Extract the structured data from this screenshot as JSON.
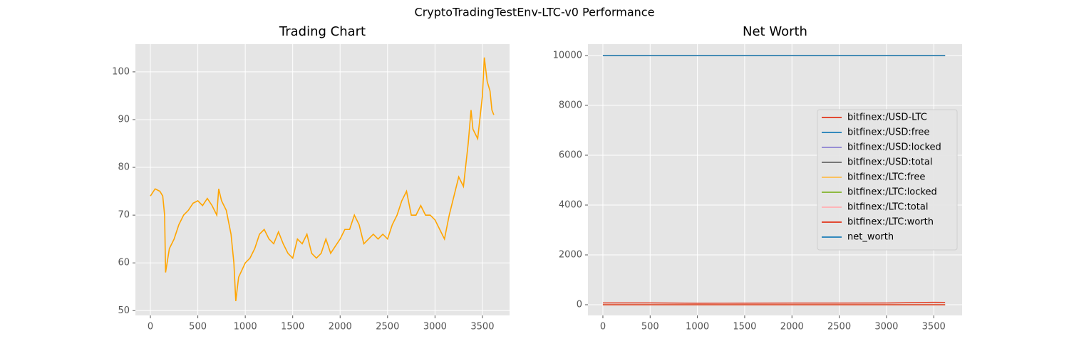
{
  "title": "CryptoTradingTestEnv-LTC-v0 Performance",
  "chart_data": [
    {
      "type": "line",
      "title": "Trading Chart",
      "color": "#FFA500",
      "grid": true,
      "x": [
        0,
        50,
        100,
        130,
        150,
        160,
        200,
        250,
        300,
        350,
        400,
        450,
        500,
        550,
        600,
        650,
        700,
        720,
        750,
        800,
        850,
        880,
        900,
        930,
        1000,
        1050,
        1100,
        1150,
        1200,
        1250,
        1300,
        1350,
        1400,
        1450,
        1500,
        1550,
        1600,
        1650,
        1700,
        1750,
        1800,
        1850,
        1900,
        1950,
        2000,
        2050,
        2100,
        2150,
        2200,
        2250,
        2300,
        2350,
        2400,
        2450,
        2500,
        2550,
        2600,
        2650,
        2700,
        2750,
        2800,
        2850,
        2900,
        2950,
        3000,
        3050,
        3100,
        3150,
        3200,
        3250,
        3300,
        3350,
        3380,
        3400,
        3450,
        3500,
        3520,
        3550,
        3580,
        3600,
        3620
      ],
      "values": [
        74,
        75.5,
        75,
        74,
        70,
        58,
        63,
        65,
        68,
        70,
        71,
        72.5,
        73,
        72,
        73.5,
        72,
        70,
        75.5,
        73,
        71,
        66,
        60,
        52,
        57,
        60,
        61,
        63,
        66,
        67,
        65,
        64,
        66.5,
        64,
        62,
        61,
        65,
        64,
        66,
        62,
        61,
        62,
        65,
        62,
        63.5,
        65,
        67,
        67,
        70,
        68,
        64,
        65,
        66,
        65,
        66,
        65,
        68,
        70,
        73,
        75,
        70,
        70,
        72,
        70,
        70,
        69,
        67,
        65,
        70,
        74,
        78,
        76,
        85,
        92,
        88,
        86,
        95,
        103,
        98,
        96,
        92,
        91
      ],
      "xlim": [
        -158,
        3786
      ],
      "ylim": [
        49,
        105.8
      ],
      "xticks": [
        0,
        500,
        1000,
        1500,
        2000,
        2500,
        3000,
        3500
      ],
      "yticks": [
        50,
        60,
        70,
        80,
        90,
        100
      ]
    },
    {
      "type": "line",
      "title": "Net Worth",
      "grid": true,
      "legend": "center right",
      "x": [
        0,
        500,
        1000,
        1500,
        2000,
        2500,
        3000,
        3500,
        3620
      ],
      "series": [
        {
          "name": "bitfinex:/USD-LTC",
          "color": "#E24A33",
          "values": [
            74,
            73,
            60,
            61,
            65,
            65,
            69,
            95,
            91
          ]
        },
        {
          "name": "bitfinex:/USD:free",
          "color": "#348ABD",
          "values": [
            10000,
            10000,
            10000,
            10000,
            10000,
            10000,
            10000,
            10000,
            10000
          ]
        },
        {
          "name": "bitfinex:/USD:locked",
          "color": "#988ED5",
          "values": [
            0,
            0,
            0,
            0,
            0,
            0,
            0,
            0,
            0
          ]
        },
        {
          "name": "bitfinex:/USD:total",
          "color": "#777777",
          "values": [
            10000,
            10000,
            10000,
            10000,
            10000,
            10000,
            10000,
            10000,
            10000
          ]
        },
        {
          "name": "bitfinex:/LTC:free",
          "color": "#FBC15E",
          "values": [
            0,
            0,
            0,
            0,
            0,
            0,
            0,
            0,
            0
          ]
        },
        {
          "name": "bitfinex:/LTC:locked",
          "color": "#8EBA42",
          "values": [
            0,
            0,
            0,
            0,
            0,
            0,
            0,
            0,
            0
          ]
        },
        {
          "name": "bitfinex:/LTC:total",
          "color": "#FFB5B8",
          "values": [
            0,
            0,
            0,
            0,
            0,
            0,
            0,
            0,
            0
          ]
        },
        {
          "name": "bitfinex:/LTC:worth",
          "color": "#E24A33",
          "values": [
            0,
            0,
            0,
            0,
            0,
            0,
            0,
            0,
            0
          ]
        },
        {
          "name": "net_worth",
          "color": "#348ABD",
          "values": [
            10000,
            10000,
            10000,
            10000,
            10000,
            10000,
            10000,
            10000,
            10000
          ]
        }
      ],
      "xlim": [
        -158,
        3800
      ],
      "ylim": [
        -429,
        10457
      ],
      "xticks": [
        0,
        500,
        1000,
        1500,
        2000,
        2500,
        3000,
        3500
      ],
      "yticks": [
        0,
        2000,
        4000,
        6000,
        8000,
        10000
      ]
    }
  ]
}
